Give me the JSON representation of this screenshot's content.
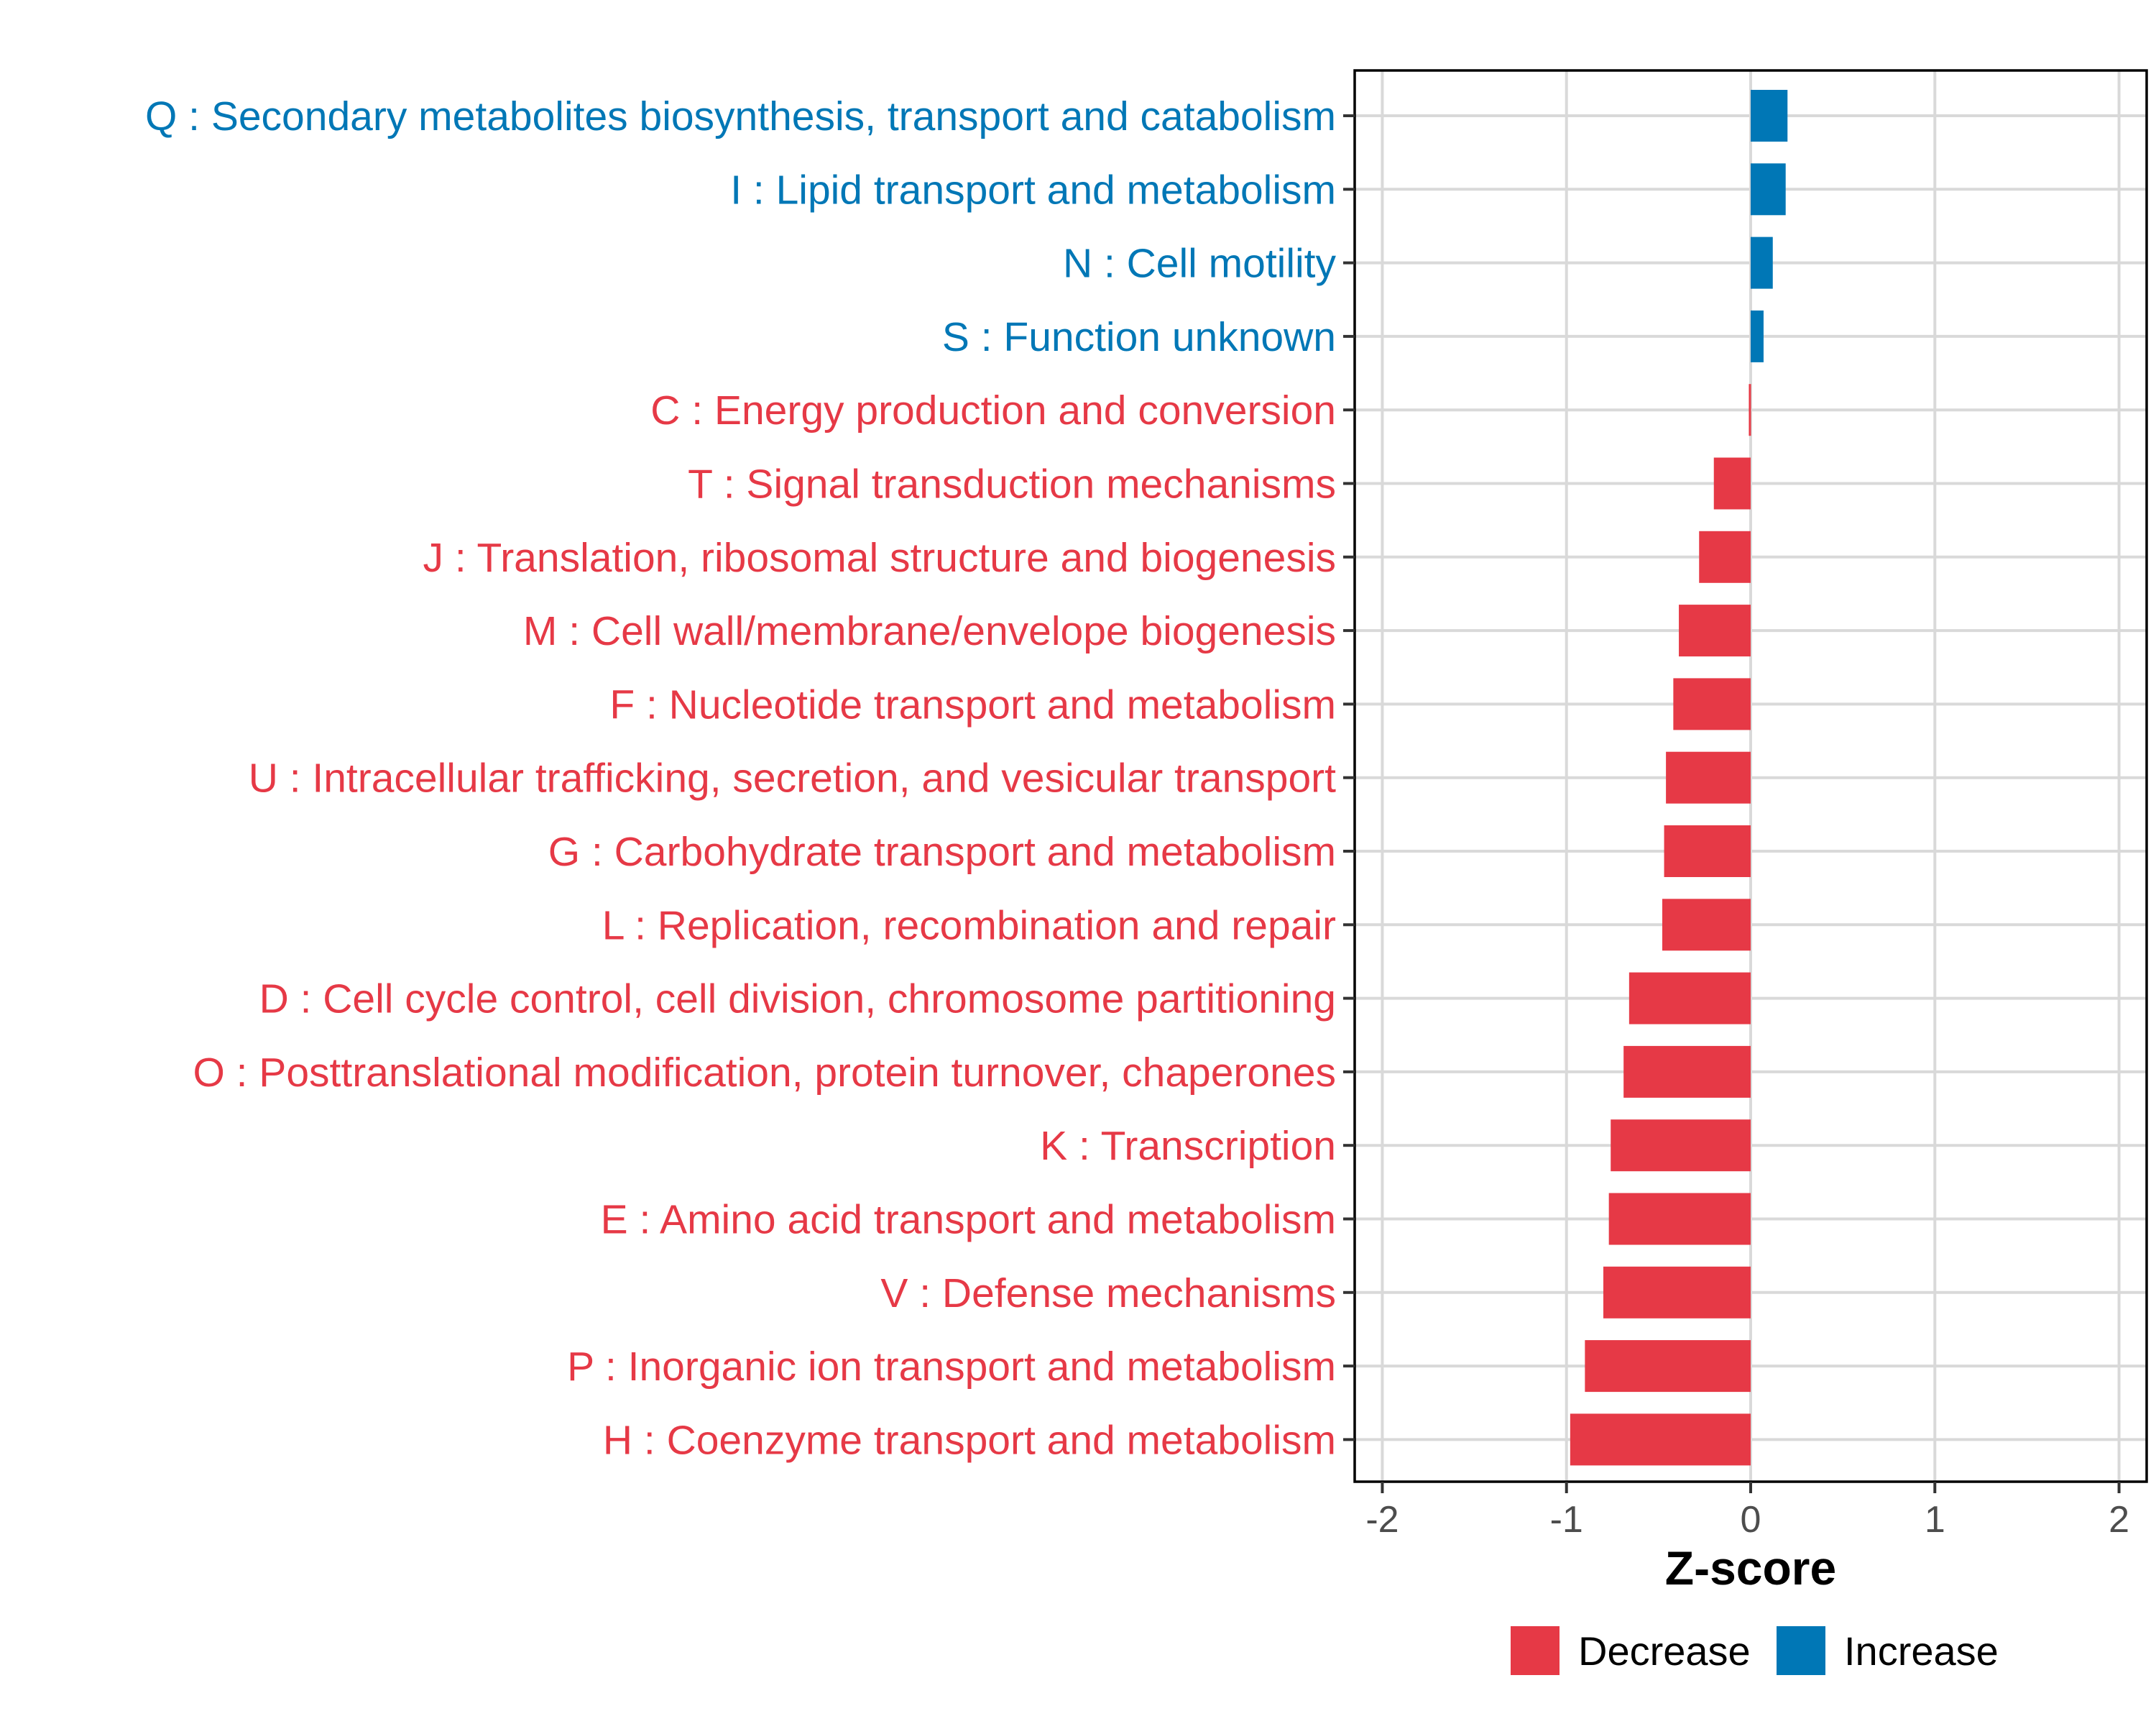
{
  "chart_data": {
    "type": "bar",
    "orientation": "horizontal",
    "xlabel": "Z-score",
    "ylabel": "",
    "xlim": [
      -2.15,
      2.15
    ],
    "xticks": [
      -2,
      -1,
      0,
      1,
      2
    ],
    "xtick_labels": [
      "-2",
      "-1",
      "0",
      "1",
      "2"
    ],
    "grid": true,
    "legend_position": "bottom",
    "legend": [
      {
        "name": "Decrease",
        "color": "#E63946"
      },
      {
        "name": "Increase",
        "color": "#0077B6"
      }
    ],
    "categories": [
      "Q : Secondary metabolites biosynthesis, transport and catabolism",
      "I : Lipid transport and metabolism",
      "N : Cell motility",
      "S : Function unknown",
      "C : Energy production and conversion",
      "T : Signal transduction mechanisms",
      "J : Translation, ribosomal structure and biogenesis",
      "M : Cell wall/membrane/envelope biogenesis",
      "F : Nucleotide transport and metabolism",
      "U : Intracellular trafficking, secretion, and vesicular transport",
      "G : Carbohydrate transport and metabolism",
      "L : Replication, recombination and repair",
      "D : Cell cycle control, cell division, chromosome partitioning",
      "O : Posttranslational modification, protein turnover, chaperones",
      "K : Transcription",
      "E : Amino acid transport and metabolism",
      "V : Defense mechanisms",
      "P : Inorganic ion transport and metabolism",
      "H : Coenzyme transport and metabolism"
    ],
    "values": [
      0.2,
      0.19,
      0.12,
      0.07,
      -0.01,
      -0.2,
      -0.28,
      -0.39,
      -0.42,
      -0.46,
      -0.47,
      -0.48,
      -0.66,
      -0.69,
      -0.76,
      -0.77,
      -0.8,
      -0.9,
      -0.98
    ],
    "series_color_rule": {
      "negative": "Decrease",
      "positive": "Increase"
    }
  }
}
